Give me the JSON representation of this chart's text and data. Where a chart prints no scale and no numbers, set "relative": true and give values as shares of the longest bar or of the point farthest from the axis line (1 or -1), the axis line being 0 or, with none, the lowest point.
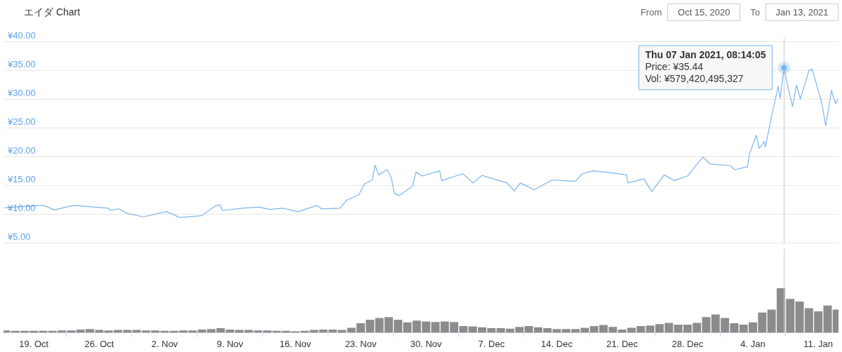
{
  "chart_data": [
    {
      "type": "line",
      "title": "エイダ Chart",
      "color": "#7cb5ec",
      "marker": "none",
      "line_style": "solid",
      "grid": "y",
      "legend": false,
      "tick_labels": "y",
      "xlim": [
        "2020-10-15T18:00",
        "2021-01-13T04:00"
      ],
      "ylim": [
        5,
        40
      ],
      "yticks": [
        {
          "value": 5,
          "label": "¥5.00"
        },
        {
          "value": 10,
          "label": "¥10.00"
        },
        {
          "value": 15,
          "label": "¥15.00"
        },
        {
          "value": 20,
          "label": "¥20.00"
        },
        {
          "value": 25,
          "label": "¥25.00"
        },
        {
          "value": 30,
          "label": "¥30.00"
        },
        {
          "value": 35,
          "label": "¥35.00"
        },
        {
          "value": 40,
          "label": "¥40.00"
        }
      ],
      "x": [
        "2020-10-15T21:00",
        "2020-10-20T01:00",
        "2020-10-21T05:00",
        "2020-10-23T05:00",
        "2020-10-26T23:00",
        "2020-10-27T06:00",
        "2020-10-28T02:00",
        "2020-10-29T00:00",
        "2020-10-30T17:00",
        "2020-11-02T06:00",
        "2020-11-03T15:00",
        "2020-11-05T23:00",
        "2020-11-07T13:00",
        "2020-11-07T22:00",
        "2020-11-08T05:00",
        "2020-11-10T09:00",
        "2020-11-12T02:00",
        "2020-11-13T07:00",
        "2020-11-14T18:00",
        "2020-11-16T07:00",
        "2020-11-18T08:00",
        "2020-11-18T19:00",
        "2020-11-20T19:00",
        "2020-11-21T12:00",
        "2020-11-22T20:00",
        "2020-11-23T09:00",
        "2020-11-24T06:00",
        "2020-11-24T13:00",
        "2020-11-24T22:00",
        "2020-11-25T20:00",
        "2020-11-26T07:00",
        "2020-11-26T14:00",
        "2020-11-27T03:00",
        "2020-11-28T13:00",
        "2020-11-28T22:00",
        "2020-11-29T14:00",
        "2020-12-01T11:00",
        "2020-12-01T16:00",
        "2020-12-03T22:00",
        "2020-12-05T01:00",
        "2020-12-06T00:00",
        "2020-12-08T16:00",
        "2020-12-09T11:00",
        "2020-12-10T02:00",
        "2020-12-11T14:00",
        "2020-12-13T12:00",
        "2020-12-16T00:00",
        "2020-12-16T18:00",
        "2020-12-17T21:00",
        "2020-12-19T14:00",
        "2020-12-21T11:00",
        "2020-12-21T15:00",
        "2020-12-23T08:00",
        "2020-12-24T04:00",
        "2020-12-25T12:00",
        "2020-12-26T14:00",
        "2020-12-28T00:00",
        "2020-12-29T03:00",
        "2020-12-29T16:00",
        "2020-12-30T10:00",
        "2021-01-01T14:00",
        "2021-01-02T01:00",
        "2021-01-03T10:00",
        "2021-01-03T15:00",
        "2021-01-04T09:00",
        "2021-01-04T16:00",
        "2021-01-05T05:00",
        "2021-01-05T08:00",
        "2021-01-06T02:00",
        "2021-01-06T17:00",
        "2021-01-06T22:00",
        "2021-01-07T08:14",
        "2021-01-07T16:00",
        "2021-01-08T06:00",
        "2021-01-08T16:00",
        "2021-01-09T02:00",
        "2021-01-10T00:00",
        "2021-01-10T08:00",
        "2021-01-10T23:00",
        "2021-01-11T10:00",
        "2021-01-11T19:00",
        "2021-01-12T10:00",
        "2021-01-12T20:00",
        "2021-01-13T03:00"
      ],
      "values": [
        11.1,
        11.5,
        10.7,
        11.5,
        11.0,
        10.6,
        10.9,
        10.1,
        9.5,
        10.4,
        9.4,
        9.7,
        11.5,
        11.6,
        10.6,
        11.0,
        11.2,
        10.8,
        11.0,
        10.4,
        11.5,
        10.9,
        11.0,
        12.4,
        13.4,
        15.2,
        15.9,
        18.5,
        16.8,
        17.7,
        16.3,
        13.6,
        13.2,
        14.8,
        17.3,
        16.6,
        17.5,
        15.8,
        17.0,
        15.4,
        16.7,
        15.4,
        14.0,
        15.4,
        14.2,
        15.9,
        15.7,
        17.0,
        17.5,
        17.2,
        16.8,
        15.4,
        16.1,
        13.9,
        16.8,
        15.8,
        16.6,
        18.9,
        19.9,
        18.7,
        18.4,
        17.7,
        18.2,
        20.4,
        23.7,
        21.4,
        22.6,
        21.6,
        27.6,
        32.2,
        30.1,
        35.44,
        32.6,
        28.7,
        32.4,
        30.0,
        34.9,
        35.2,
        31.7,
        29.0,
        25.3,
        31.5,
        29.2,
        30.0
      ],
      "ref_lines": [
        {
          "axis": "x",
          "value": "2021-01-07T08:14",
          "color": "#cccccc"
        }
      ],
      "annotations": [
        "From",
        "Oct 15, 2020",
        "To",
        "Jan 13, 2021",
        {
          "text": "Thu 07 Jan 2021, 08:14:05\nPrice: ¥35.44\nVol: ¥579,420,495,327",
          "x": "2021-01-07T08:14",
          "y": 35.44
        }
      ]
    },
    {
      "type": "bar",
      "relative": true,
      "color": "#8c8c8c",
      "legend": false,
      "grid": false,
      "tick_labels": "x",
      "xlim": [
        "2020-10-15T18:00",
        "2021-01-13T04:00"
      ],
      "xticks": [
        {
          "value": "2020-10-19",
          "label": "19. Oct"
        },
        {
          "value": "2020-10-26",
          "label": "26. Oct"
        },
        {
          "value": "2020-11-02",
          "label": "2. Nov"
        },
        {
          "value": "2020-11-09",
          "label": "9. Nov"
        },
        {
          "value": "2020-11-16",
          "label": "16. Nov"
        },
        {
          "value": "2020-11-23",
          "label": "23. Nov"
        },
        {
          "value": "2020-11-30",
          "label": "30. Nov"
        },
        {
          "value": "2020-12-07",
          "label": "7. Dec"
        },
        {
          "value": "2020-12-14",
          "label": "14. Dec"
        },
        {
          "value": "2020-12-21",
          "label": "21. Dec"
        },
        {
          "value": "2020-12-28",
          "label": "28. Dec"
        },
        {
          "value": "2021-01-04",
          "label": "4. Jan"
        },
        {
          "value": "2021-01-11",
          "label": "11. Jan"
        }
      ],
      "x": [
        "2020-10-16",
        "2020-10-17",
        "2020-10-18",
        "2020-10-19",
        "2020-10-20",
        "2020-10-21",
        "2020-10-22",
        "2020-10-23",
        "2020-10-24",
        "2020-10-25",
        "2020-10-26",
        "2020-10-27",
        "2020-10-28",
        "2020-10-29",
        "2020-10-30",
        "2020-10-31",
        "2020-11-01",
        "2020-11-02",
        "2020-11-03",
        "2020-11-04",
        "2020-11-05",
        "2020-11-06",
        "2020-11-07",
        "2020-11-08",
        "2020-11-09",
        "2020-11-10",
        "2020-11-11",
        "2020-11-12",
        "2020-11-13",
        "2020-11-14",
        "2020-11-15",
        "2020-11-16",
        "2020-11-17",
        "2020-11-18",
        "2020-11-19",
        "2020-11-20",
        "2020-11-21",
        "2020-11-22",
        "2020-11-23",
        "2020-11-24",
        "2020-11-25",
        "2020-11-26",
        "2020-11-27",
        "2020-11-28",
        "2020-11-29",
        "2020-11-30",
        "2020-12-01",
        "2020-12-02",
        "2020-12-03",
        "2020-12-04",
        "2020-12-05",
        "2020-12-06",
        "2020-12-07",
        "2020-12-08",
        "2020-12-09",
        "2020-12-10",
        "2020-12-11",
        "2020-12-12",
        "2020-12-13",
        "2020-12-14",
        "2020-12-15",
        "2020-12-16",
        "2020-12-17",
        "2020-12-18",
        "2020-12-19",
        "2020-12-20",
        "2020-12-21",
        "2020-12-22",
        "2020-12-23",
        "2020-12-24",
        "2020-12-25",
        "2020-12-26",
        "2020-12-27",
        "2020-12-28",
        "2020-12-29",
        "2020-12-30",
        "2020-12-31",
        "2021-01-01",
        "2021-01-02",
        "2021-01-03",
        "2021-01-04",
        "2021-01-05",
        "2021-01-06",
        "2021-01-07",
        "2021-01-08",
        "2021-01-09",
        "2021-01-10",
        "2021-01-11",
        "2021-01-12",
        "2021-01-13"
      ],
      "values": [
        0.05,
        0.04,
        0.04,
        0.04,
        0.04,
        0.04,
        0.05,
        0.05,
        0.07,
        0.08,
        0.06,
        0.05,
        0.06,
        0.06,
        0.06,
        0.05,
        0.05,
        0.04,
        0.04,
        0.05,
        0.05,
        0.07,
        0.08,
        0.1,
        0.07,
        0.06,
        0.06,
        0.05,
        0.05,
        0.04,
        0.04,
        0.03,
        0.04,
        0.06,
        0.07,
        0.07,
        0.06,
        0.11,
        0.21,
        0.29,
        0.33,
        0.35,
        0.29,
        0.23,
        0.27,
        0.25,
        0.24,
        0.25,
        0.24,
        0.15,
        0.14,
        0.12,
        0.1,
        0.1,
        0.09,
        0.13,
        0.15,
        0.12,
        0.1,
        0.08,
        0.08,
        0.08,
        0.11,
        0.15,
        0.17,
        0.13,
        0.07,
        0.11,
        0.15,
        0.16,
        0.19,
        0.22,
        0.18,
        0.18,
        0.22,
        0.35,
        0.41,
        0.33,
        0.21,
        0.18,
        0.23,
        0.45,
        0.52,
        1,
        0.76,
        0.7,
        0.55,
        0.48,
        0.61,
        0.52
      ],
      "ref_lines": [
        {
          "axis": "x",
          "value": "2021-01-07T08:14",
          "color": "#cccccc"
        }
      ]
    }
  ]
}
